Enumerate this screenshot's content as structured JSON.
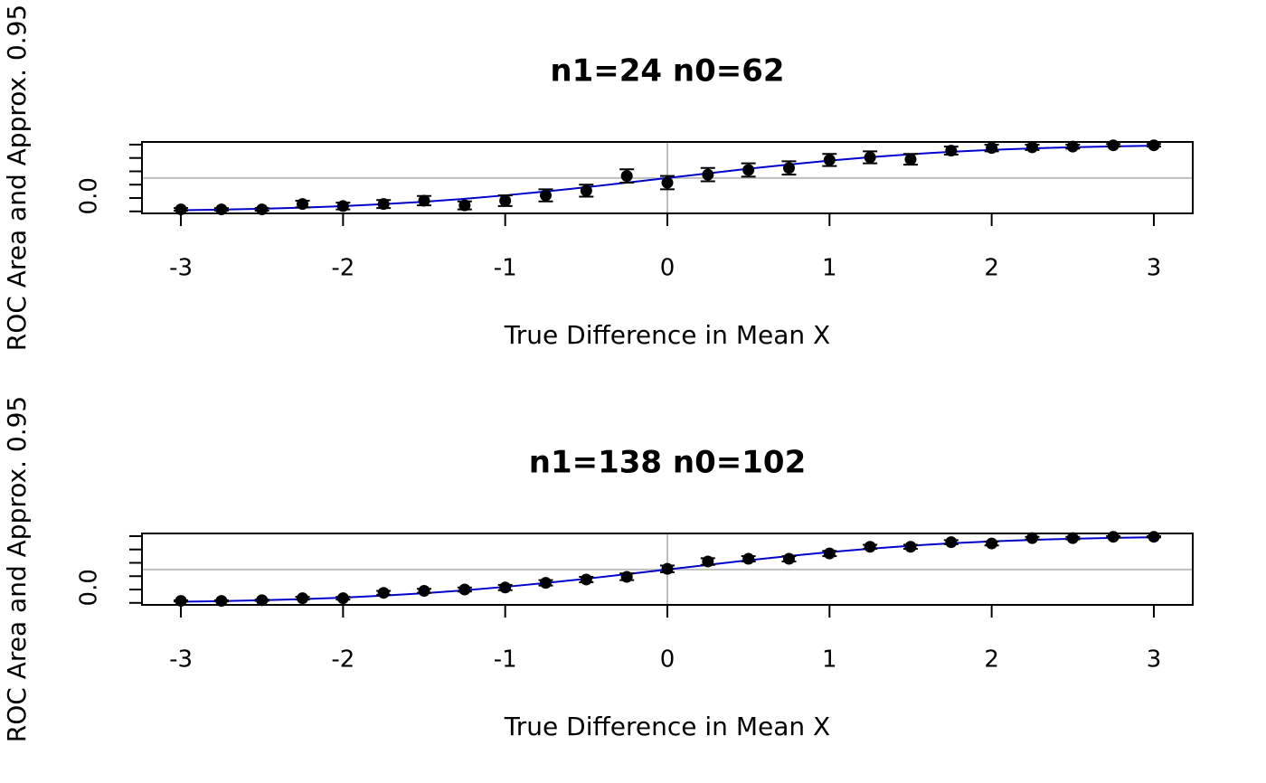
{
  "chart_data": [
    {
      "type": "errorbar",
      "title": "n1=24  n0=62",
      "x_label": "True Difference in Mean X",
      "y_label": "ROC Area and Approx. 0.95",
      "x": [
        -3,
        -2.75,
        -2.5,
        -2.25,
        -2,
        -1.75,
        -1.5,
        -1.25,
        -1,
        -0.75,
        -0.5,
        -0.25,
        0,
        0.25,
        0.5,
        0.75,
        1,
        1.25,
        1.5,
        1.75,
        2,
        2.25,
        2.5,
        2.75,
        3
      ],
      "values": [
        0.03,
        0.03,
        0.03,
        0.11,
        0.08,
        0.11,
        0.16,
        0.09,
        0.16,
        0.24,
        0.31,
        0.53,
        0.43,
        0.55,
        0.62,
        0.65,
        0.77,
        0.81,
        0.78,
        0.91,
        0.95,
        0.96,
        0.97,
        0.99,
        0.99
      ],
      "errors": [
        0.02,
        0.02,
        0.02,
        0.05,
        0.05,
        0.06,
        0.07,
        0.06,
        0.08,
        0.09,
        0.09,
        0.1,
        0.1,
        0.1,
        0.1,
        0.1,
        0.09,
        0.09,
        0.08,
        0.06,
        0.05,
        0.04,
        0.03,
        0.02,
        0.02
      ],
      "curve": [
        0.017,
        0.026,
        0.039,
        0.056,
        0.079,
        0.108,
        0.144,
        0.188,
        0.24,
        0.298,
        0.362,
        0.43,
        0.5,
        0.57,
        0.638,
        0.702,
        0.76,
        0.812,
        0.856,
        0.892,
        0.921,
        0.944,
        0.961,
        0.974,
        0.983
      ],
      "point_color": "#000000",
      "curve_color": "#0000cc",
      "hline": 0.5,
      "vline": 0,
      "xlim": [
        -3.24,
        3.24
      ],
      "ylim": [
        -0.03,
        1.04
      ],
      "xticks": [
        -3,
        -2,
        -1,
        0,
        1,
        2,
        3
      ],
      "yticks": [
        {
          "value": 0,
          "label": "0.0"
        },
        {
          "value": 0.2,
          "label": null
        },
        {
          "value": 0.4,
          "label": null
        },
        {
          "value": 0.6,
          "label": null
        },
        {
          "value": 0.8,
          "label": null
        },
        {
          "value": 1,
          "label": null
        }
      ]
    },
    {
      "type": "errorbar",
      "title": "n1=138  n0=102",
      "x_label": "True Difference in Mean X",
      "y_label": "ROC Area and Approx. 0.95",
      "x": [
        -3,
        -2.75,
        -2.5,
        -2.25,
        -2,
        -1.75,
        -1.5,
        -1.25,
        -1,
        -0.75,
        -0.5,
        -0.25,
        0,
        0.25,
        0.5,
        0.75,
        1,
        1.25,
        1.5,
        1.75,
        2,
        2.25,
        2.5,
        2.75,
        3
      ],
      "values": [
        0.03,
        0.03,
        0.04,
        0.07,
        0.07,
        0.15,
        0.18,
        0.2,
        0.23,
        0.3,
        0.35,
        0.39,
        0.51,
        0.62,
        0.66,
        0.66,
        0.74,
        0.84,
        0.84,
        0.91,
        0.89,
        0.97,
        0.97,
        0.99,
        0.99
      ],
      "errors": [
        0.01,
        0.01,
        0.01,
        0.02,
        0.02,
        0.03,
        0.03,
        0.03,
        0.04,
        0.04,
        0.04,
        0.05,
        0.05,
        0.05,
        0.04,
        0.04,
        0.04,
        0.03,
        0.03,
        0.03,
        0.03,
        0.02,
        0.02,
        0.01,
        0.01
      ],
      "curve": [
        0.017,
        0.026,
        0.039,
        0.056,
        0.079,
        0.108,
        0.144,
        0.188,
        0.24,
        0.298,
        0.362,
        0.43,
        0.5,
        0.57,
        0.638,
        0.702,
        0.76,
        0.812,
        0.856,
        0.892,
        0.921,
        0.944,
        0.961,
        0.974,
        0.983
      ],
      "point_color": "#000000",
      "curve_color": "#0000cc",
      "hline": 0.5,
      "vline": 0,
      "xlim": [
        -3.24,
        3.24
      ],
      "ylim": [
        -0.03,
        1.04
      ],
      "xticks": [
        -3,
        -2,
        -1,
        0,
        1,
        2,
        3
      ],
      "yticks": [
        {
          "value": 0,
          "label": "0.0"
        },
        {
          "value": 0.2,
          "label": null
        },
        {
          "value": 0.4,
          "label": null
        },
        {
          "value": 0.6,
          "label": null
        },
        {
          "value": 0.8,
          "label": null
        },
        {
          "value": 1,
          "label": null
        }
      ]
    }
  ]
}
